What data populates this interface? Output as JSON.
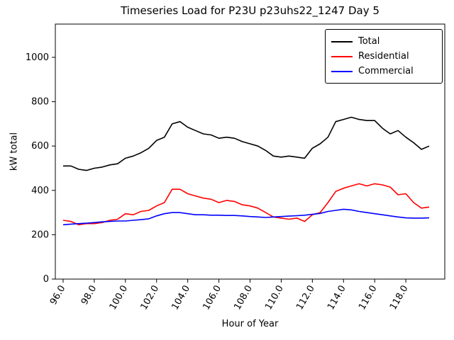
{
  "chart_data": {
    "type": "line",
    "title": "Timeseries Load for P23U p23uhs22_1247  Day 5",
    "xlabel": "Hour of Year",
    "ylabel": "kW total",
    "xlim": [
      95.5,
      120.5
    ],
    "ylim": [
      0,
      1150
    ],
    "xticks": [
      96,
      98,
      100,
      102,
      104,
      106,
      108,
      110,
      112,
      114,
      116,
      118
    ],
    "yticks": [
      0,
      200,
      400,
      600,
      800,
      1000
    ],
    "grid": false,
    "legend_position": "upper right",
    "x": [
      96,
      96.5,
      97,
      97.5,
      98,
      98.5,
      99,
      99.5,
      100,
      100.5,
      101,
      101.5,
      102,
      102.5,
      103,
      103.5,
      104,
      104.5,
      105,
      105.5,
      106,
      106.5,
      107,
      107.5,
      108,
      108.5,
      109,
      109.5,
      110,
      110.5,
      111,
      111.5,
      112,
      112.5,
      113,
      113.5,
      114,
      114.5,
      115,
      115.5,
      116,
      116.5,
      117,
      117.5,
      118,
      118.5,
      119,
      119.5
    ],
    "series": [
      {
        "name": "Total",
        "color": "#000000",
        "values": [
          510,
          510,
          495,
          490,
          500,
          505,
          515,
          520,
          545,
          555,
          570,
          590,
          625,
          640,
          700,
          710,
          685,
          670,
          655,
          650,
          635,
          640,
          635,
          620,
          610,
          600,
          580,
          555,
          550,
          555,
          550,
          545,
          590,
          610,
          640,
          710,
          720,
          730,
          720,
          715,
          715,
          680,
          655,
          670,
          640,
          615,
          585,
          600
        ]
      },
      {
        "name": "Residential",
        "color": "#ff0000",
        "values": [
          265,
          260,
          245,
          250,
          250,
          255,
          265,
          270,
          295,
          290,
          305,
          310,
          330,
          345,
          405,
          405,
          385,
          375,
          365,
          360,
          345,
          355,
          350,
          335,
          330,
          320,
          300,
          280,
          275,
          270,
          275,
          260,
          290,
          300,
          345,
          395,
          410,
          420,
          430,
          420,
          430,
          425,
          415,
          380,
          385,
          345,
          320,
          325
        ]
      },
      {
        "name": "Commercial",
        "color": "#0000ff",
        "values": [
          245,
          248,
          250,
          252,
          255,
          258,
          260,
          262,
          262,
          265,
          268,
          272,
          285,
          295,
          300,
          300,
          295,
          290,
          290,
          288,
          288,
          287,
          287,
          285,
          282,
          280,
          278,
          280,
          282,
          284,
          286,
          288,
          292,
          296,
          305,
          310,
          315,
          312,
          305,
          300,
          295,
          290,
          285,
          280,
          276,
          275,
          275,
          276
        ]
      }
    ]
  }
}
